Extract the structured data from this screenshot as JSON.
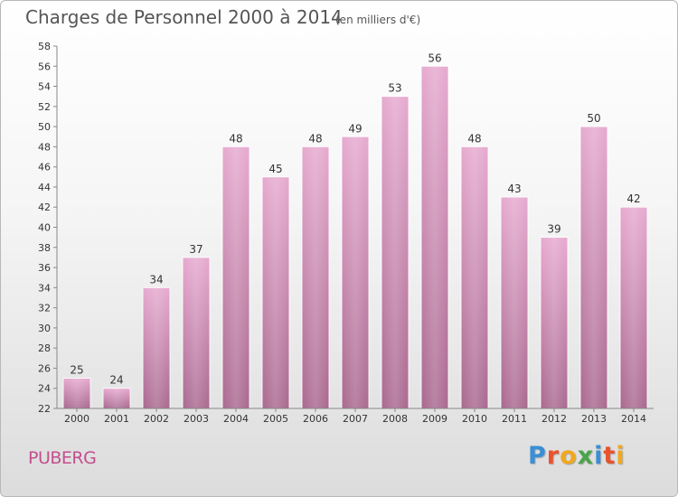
{
  "header": {
    "title": "Charges de Personnel 2000 à 2014",
    "subtitle": "(en milliers d'€)"
  },
  "footer": {
    "place": "PUBERG",
    "logo": {
      "letters": [
        "P",
        "r",
        "o",
        "x",
        "i",
        "t",
        "i"
      ],
      "colors": [
        "#3a8fd6",
        "#e9522b",
        "#f2a81d",
        "#4aa54a",
        "#3a8fd6",
        "#e9522b",
        "#f2a81d"
      ]
    }
  },
  "chart_data": {
    "type": "bar",
    "categories": [
      "2000",
      "2001",
      "2002",
      "2003",
      "2004",
      "2005",
      "2006",
      "2007",
      "2008",
      "2009",
      "2010",
      "2011",
      "2012",
      "2013",
      "2014"
    ],
    "values": [
      25,
      24,
      34,
      37,
      48,
      45,
      48,
      49,
      53,
      56,
      48,
      43,
      39,
      50,
      42
    ],
    "title": "Charges de Personnel 2000 à 2014",
    "subtitle": "(en milliers d'€)",
    "xlabel": "",
    "ylabel": "",
    "ylim": [
      22,
      58
    ],
    "yticks": [
      22,
      24,
      26,
      28,
      30,
      32,
      34,
      36,
      38,
      40,
      42,
      44,
      46,
      48,
      50,
      52,
      54,
      56,
      58
    ],
    "grid": false,
    "colors": {
      "bar_light": "#e6a9cf",
      "bar_dark": "#a9688f",
      "axis": "#888888"
    }
  }
}
